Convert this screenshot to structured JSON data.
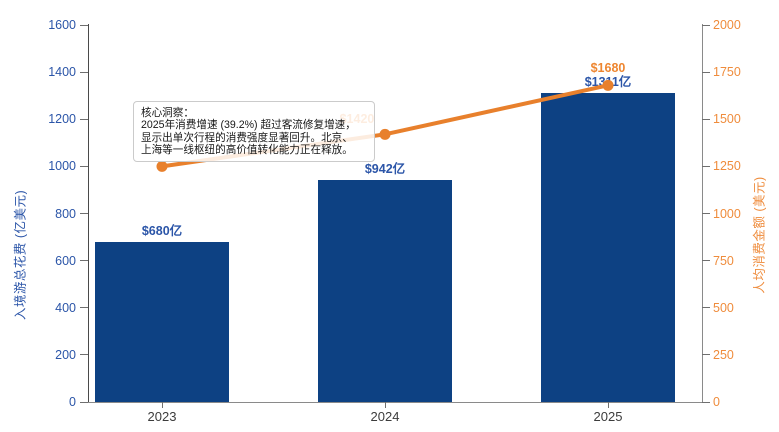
{
  "chart_data": {
    "type": "bar",
    "subtype": "bar+line combo, dual y-axis",
    "categories": [
      "2023",
      "2024",
      "2025"
    ],
    "series": [
      {
        "name": "入境游总花费",
        "type": "bar",
        "axis": "left",
        "values": [
          680,
          942,
          1311
        ],
        "labels": [
          "$680亿",
          "$942亿",
          "$1311亿"
        ],
        "color": "#0d4183",
        "label_color": "#2b55a8"
      },
      {
        "name": "人均消费金额",
        "type": "line",
        "axis": "right",
        "values": [
          1250,
          1420,
          1680
        ],
        "labels": [
          "",
          "$1420",
          "$1680"
        ],
        "color": "#e8802c",
        "label_color": "#ee8630"
      }
    ],
    "left_axis": {
      "title": "入境游总花费 (亿美元)",
      "min": 0,
      "max": 1600,
      "step": 200,
      "ticks": [
        0,
        200,
        400,
        600,
        800,
        1000,
        1200,
        1400,
        1600
      ],
      "text_color": "#2b55a8"
    },
    "right_axis": {
      "title": "人均消费金额 (美元)",
      "min": 0,
      "max": 2000,
      "step": 250,
      "ticks": [
        0,
        250,
        500,
        750,
        1000,
        1250,
        1500,
        1750,
        2000
      ],
      "text_color": "#ef8c3c"
    },
    "x_axis": {
      "text_color": "#3c3c3c"
    },
    "grid": false,
    "legend": false,
    "title": ""
  },
  "annotation": {
    "title": "核心洞察：",
    "lines": [
      "2025年消费增速 (39.2%) 超过客流修复增速，",
      "显示出单次行程的消费强度显著回升。北京、",
      "上海等一线枢纽的高价值转化能力正在释放。"
    ]
  }
}
